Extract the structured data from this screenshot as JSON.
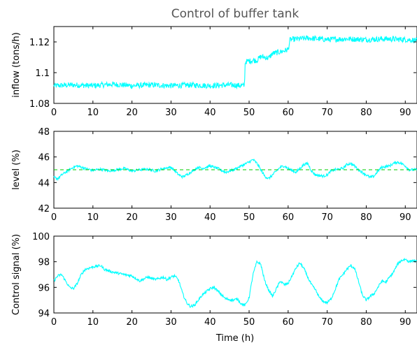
{
  "figure": {
    "title": "Control of buffer tank",
    "xlabel": "Time (h)"
  },
  "colors": {
    "signal": "#00ffff",
    "setpoint": "#00cc00"
  },
  "chart_data": [
    {
      "type": "line",
      "ylabel": "inflow (tons/h)",
      "xlim": [
        0,
        93
      ],
      "ylim": [
        1.08,
        1.13
      ],
      "xticks": [
        0,
        10,
        20,
        30,
        40,
        50,
        60,
        70,
        80,
        90
      ],
      "yticks": [
        1.08,
        1.1,
        1.12
      ],
      "ytick_labels": [
        "1.08",
        "1.1",
        "1.12"
      ],
      "noise": 0.0018,
      "series": [
        {
          "style": "signal",
          "points": [
            [
              0,
              1.0915
            ],
            [
              5,
              1.092
            ],
            [
              10,
              1.0915
            ],
            [
              15,
              1.0925
            ],
            [
              20,
              1.0915
            ],
            [
              25,
              1.092
            ],
            [
              30,
              1.0915
            ],
            [
              35,
              1.092
            ],
            [
              40,
              1.0915
            ],
            [
              45,
              1.092
            ],
            [
              48.8,
              1.0915
            ],
            [
              49,
              1.107
            ],
            [
              51,
              1.108
            ],
            [
              52,
              1.108
            ],
            [
              53,
              1.1105
            ],
            [
              55,
              1.1095
            ],
            [
              56,
              1.1125
            ],
            [
              58,
              1.1135
            ],
            [
              60,
              1.115
            ],
            [
              60.5,
              1.1215
            ],
            [
              65,
              1.1225
            ],
            [
              70,
              1.1215
            ],
            [
              75,
              1.122
            ],
            [
              80,
              1.1215
            ],
            [
              85,
              1.122
            ],
            [
              90,
              1.1215
            ],
            [
              93,
              1.121
            ]
          ]
        }
      ]
    },
    {
      "type": "line",
      "ylabel": "level (%)",
      "xlim": [
        0,
        93
      ],
      "ylim": [
        42,
        48
      ],
      "xticks": [
        0,
        10,
        20,
        30,
        40,
        50,
        60,
        70,
        80,
        90
      ],
      "yticks": [
        42,
        44,
        46,
        48
      ],
      "ytick_labels": [
        "42",
        "44",
        "46",
        "48"
      ],
      "noise": 0.1,
      "series": [
        {
          "style": "signal",
          "points": [
            [
              0,
              44.4
            ],
            [
              1,
              44.3
            ],
            [
              2,
              44.6
            ],
            [
              4,
              45.0
            ],
            [
              5,
              45.2
            ],
            [
              6,
              45.3
            ],
            [
              8,
              45.1
            ],
            [
              10,
              44.95
            ],
            [
              12,
              45.05
            ],
            [
              14,
              44.9
            ],
            [
              16,
              45.0
            ],
            [
              18,
              45.1
            ],
            [
              20,
              44.9
            ],
            [
              22,
              45.0
            ],
            [
              24,
              45.05
            ],
            [
              26,
              44.9
            ],
            [
              28,
              45.1
            ],
            [
              30,
              45.2
            ],
            [
              31,
              44.9
            ],
            [
              32,
              44.6
            ],
            [
              33,
              44.45
            ],
            [
              34,
              44.6
            ],
            [
              35,
              44.8
            ],
            [
              36,
              45.0
            ],
            [
              37,
              45.2
            ],
            [
              38,
              45.1
            ],
            [
              40,
              45.3
            ],
            [
              42,
              45.1
            ],
            [
              44,
              44.8
            ],
            [
              46,
              45.0
            ],
            [
              48,
              45.3
            ],
            [
              50,
              45.6
            ],
            [
              51,
              45.8
            ],
            [
              52,
              45.5
            ],
            [
              54,
              44.5
            ],
            [
              55,
              44.3
            ],
            [
              56,
              44.6
            ],
            [
              58,
              45.2
            ],
            [
              59,
              45.3
            ],
            [
              60,
              45.1
            ],
            [
              62,
              44.8
            ],
            [
              64,
              45.4
            ],
            [
              65,
              45.5
            ],
            [
              66,
              44.9
            ],
            [
              67,
              44.6
            ],
            [
              69,
              44.5
            ],
            [
              70,
              44.6
            ],
            [
              71,
              44.9
            ],
            [
              72,
              45.0
            ],
            [
              74,
              45.1
            ],
            [
              75,
              45.4
            ],
            [
              76,
              45.5
            ],
            [
              77,
              45.3
            ],
            [
              78,
              45.0
            ],
            [
              80,
              44.6
            ],
            [
              81,
              44.4
            ],
            [
              82,
              44.5
            ],
            [
              83,
              44.9
            ],
            [
              84,
              45.2
            ],
            [
              86,
              45.3
            ],
            [
              87,
              45.5
            ],
            [
              88,
              45.6
            ],
            [
              89,
              45.5
            ],
            [
              90,
              45.3
            ],
            [
              91,
              45.0
            ],
            [
              93,
              45.0
            ]
          ]
        },
        {
          "style": "setpoint",
          "points": [
            [
              0,
              45
            ],
            [
              93,
              45
            ]
          ]
        }
      ]
    },
    {
      "type": "line",
      "ylabel": "Control signal (%)",
      "xlim": [
        0,
        93
      ],
      "ylim": [
        94,
        100
      ],
      "xticks": [
        0,
        10,
        20,
        30,
        40,
        50,
        60,
        70,
        80,
        90
      ],
      "yticks": [
        94,
        96,
        98,
        100
      ],
      "ytick_labels": [
        "94",
        "96",
        "98",
        "100"
      ],
      "noise": 0.1,
      "series": [
        {
          "style": "signal",
          "points": [
            [
              0,
              96.5
            ],
            [
              1,
              96.9
            ],
            [
              2,
              97.0
            ],
            [
              3,
              96.5
            ],
            [
              4,
              96.0
            ],
            [
              5,
              95.9
            ],
            [
              6,
              96.3
            ],
            [
              7,
              97.0
            ],
            [
              8,
              97.4
            ],
            [
              10,
              97.6
            ],
            [
              12,
              97.7
            ],
            [
              13,
              97.4
            ],
            [
              15,
              97.2
            ],
            [
              18,
              97.0
            ],
            [
              20,
              96.9
            ],
            [
              22,
              96.5
            ],
            [
              24,
              96.8
            ],
            [
              26,
              96.6
            ],
            [
              28,
              96.8
            ],
            [
              29,
              96.6
            ],
            [
              30,
              96.8
            ],
            [
              31,
              96.9
            ],
            [
              32,
              96.5
            ],
            [
              33,
              95.5
            ],
            [
              34,
              94.8
            ],
            [
              35,
              94.5
            ],
            [
              36,
              94.6
            ],
            [
              38,
              95.4
            ],
            [
              40,
              95.9
            ],
            [
              41,
              96.0
            ],
            [
              42,
              95.7
            ],
            [
              44,
              95.1
            ],
            [
              46,
              95.0
            ],
            [
              47,
              95.1
            ],
            [
              48,
              94.7
            ],
            [
              49,
              94.6
            ],
            [
              50,
              95.2
            ],
            [
              51,
              97.0
            ],
            [
              52,
              98.0
            ],
            [
              53,
              97.8
            ],
            [
              54,
              96.5
            ],
            [
              55,
              95.8
            ],
            [
              56,
              95.3
            ],
            [
              58,
              96.5
            ],
            [
              59,
              96.2
            ],
            [
              60,
              96.3
            ],
            [
              62,
              97.5
            ],
            [
              63,
              97.9
            ],
            [
              64,
              97.5
            ],
            [
              65,
              96.8
            ],
            [
              66,
              96.2
            ],
            [
              67,
              95.8
            ],
            [
              68,
              95.2
            ],
            [
              69,
              94.9
            ],
            [
              70,
              94.8
            ],
            [
              71,
              95.1
            ],
            [
              72,
              95.8
            ],
            [
              73,
              96.6
            ],
            [
              74,
              97.0
            ],
            [
              75,
              97.4
            ],
            [
              76,
              97.7
            ],
            [
              77,
              97.5
            ],
            [
              78,
              96.5
            ],
            [
              79,
              95.4
            ],
            [
              80,
              95.0
            ],
            [
              81,
              95.3
            ],
            [
              82,
              95.5
            ],
            [
              83,
              96.0
            ],
            [
              84,
              96.5
            ],
            [
              85,
              96.4
            ],
            [
              86,
              96.8
            ],
            [
              87,
              97.2
            ],
            [
              88,
              97.8
            ],
            [
              89,
              98.1
            ],
            [
              90,
              98.2
            ],
            [
              91,
              98.0
            ],
            [
              92,
              98.1
            ],
            [
              93,
              98.0
            ]
          ]
        }
      ]
    }
  ]
}
